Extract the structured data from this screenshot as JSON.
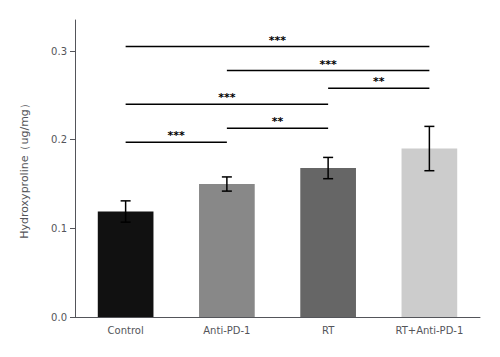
{
  "chart_data": {
    "type": "bar",
    "categories": [
      "Control",
      "Anti-PD-1",
      "RT",
      "RT+Anti-PD-1"
    ],
    "values": [
      0.119,
      0.15,
      0.168,
      0.19
    ],
    "errors": [
      0.012,
      0.008,
      0.012,
      0.025
    ],
    "colors": [
      "#111111",
      "#888888",
      "#666666",
      "#cccccc"
    ],
    "ylabel": "Hydroxyproline（ug/mg）",
    "ylim": [
      0,
      0.335
    ],
    "yticks": [
      {
        "value": 0,
        "label": "0.0"
      },
      0.1,
      0.2,
      0.3
    ],
    "grid": false,
    "significance_brackets": [
      {
        "from": "Control",
        "to": "Anti-PD-1",
        "y": 0.197,
        "label": "***"
      },
      {
        "from": "Anti-PD-1",
        "to": "RT",
        "y": 0.213,
        "label": "**"
      },
      {
        "from": "Control",
        "to": "RT",
        "y": 0.24,
        "label": "***"
      },
      {
        "from": "RT",
        "to": "RT+Anti-PD-1",
        "y": 0.258,
        "label": "**"
      },
      {
        "from": "Anti-PD-1",
        "to": "RT+Anti-PD-1",
        "y": 0.278,
        "label": "***"
      },
      {
        "from": "Control",
        "to": "RT+Anti-PD-1",
        "y": 0.305,
        "label": "***"
      }
    ]
  }
}
